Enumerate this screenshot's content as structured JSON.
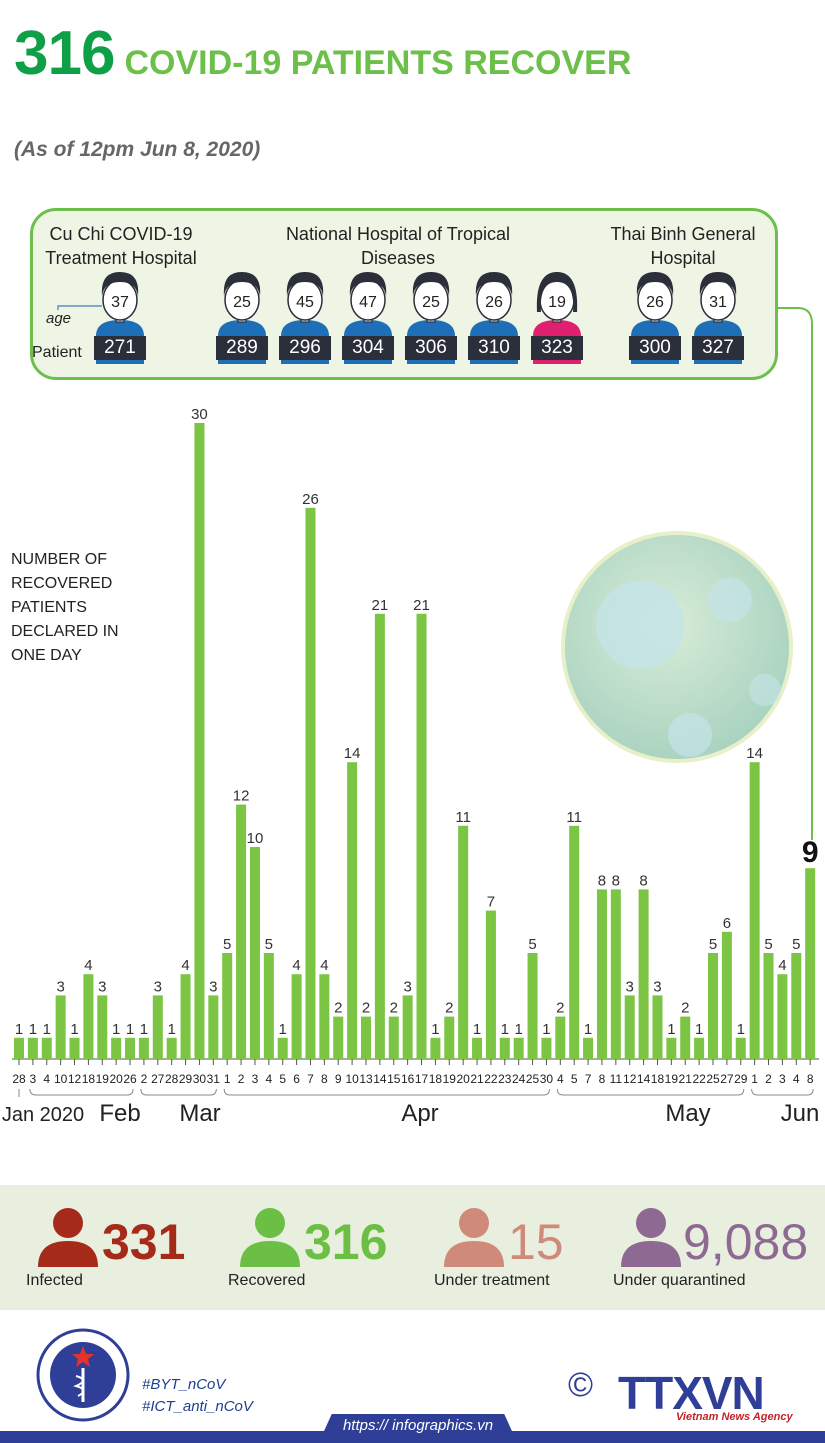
{
  "header": {
    "count": "316",
    "title": "COVID-19 PATIENTS RECOVER",
    "subtitle": "(As of 12pm Jun 8, 2020)"
  },
  "hospitals": [
    {
      "name_line1": "Cu Chi COVID-19",
      "name_line2": "Treatment Hospital"
    },
    {
      "name_line1": "National Hospital of Tropical",
      "name_line2": "Diseases"
    },
    {
      "name_line1": "Thai Binh General",
      "name_line2": "Hospital"
    }
  ],
  "patients": [
    {
      "age": "37",
      "id": "271",
      "gender": "male"
    },
    {
      "age": "25",
      "id": "289",
      "gender": "male"
    },
    {
      "age": "45",
      "id": "296",
      "gender": "male"
    },
    {
      "age": "47",
      "id": "304",
      "gender": "male"
    },
    {
      "age": "25",
      "id": "306",
      "gender": "male"
    },
    {
      "age": "26",
      "id": "310",
      "gender": "male"
    },
    {
      "age": "19",
      "id": "323",
      "gender": "female"
    },
    {
      "age": "26",
      "id": "300",
      "gender": "male"
    },
    {
      "age": "31",
      "id": "327",
      "gender": "male"
    }
  ],
  "notes": {
    "age": "age",
    "patient": "Patient"
  },
  "chart_desc": [
    "NUMBER OF",
    "RECOVERED",
    "PATIENTS",
    "DECLARED IN",
    "ONE DAY"
  ],
  "chart_data": {
    "type": "bar",
    "categories": [
      "28",
      "3",
      "4",
      "10",
      "12",
      "18",
      "19",
      "20",
      "26",
      "2",
      "27",
      "28",
      "29",
      "30",
      "31",
      "1",
      "2",
      "3",
      "4",
      "5",
      "6",
      "7",
      "8",
      "9",
      "10",
      "13",
      "14",
      "15",
      "16",
      "17",
      "18",
      "19",
      "20",
      "21",
      "22",
      "23",
      "24",
      "25",
      "30",
      "4",
      "5",
      "7",
      "8",
      "11",
      "12",
      "14",
      "18",
      "19",
      "21",
      "22",
      "25",
      "27",
      "29",
      "1",
      "2",
      "3",
      "4",
      "8"
    ],
    "values": [
      1,
      1,
      1,
      3,
      1,
      4,
      3,
      1,
      1,
      1,
      3,
      1,
      4,
      30,
      3,
      5,
      12,
      10,
      5,
      1,
      4,
      26,
      4,
      2,
      14,
      2,
      21,
      2,
      3,
      21,
      1,
      2,
      11,
      1,
      7,
      1,
      1,
      5,
      1,
      2,
      11,
      1,
      8,
      8,
      3,
      8,
      3,
      1,
      2,
      1,
      5,
      6,
      1,
      14,
      5,
      4,
      5,
      9
    ],
    "months": [
      "Jan 2020",
      "Feb",
      "Mar",
      "Apr",
      "May",
      "Jun"
    ],
    "highlight_index": 57
  },
  "stats": [
    {
      "value": "331",
      "label": "Infected",
      "color": "#a52a1a"
    },
    {
      "value": "316",
      "label": "Recovered",
      "color": "#6cbf45"
    },
    {
      "value": "15",
      "label": "Under treatment",
      "color": "#d08a7a"
    },
    {
      "value": "9,088",
      "label": "Under quarantined",
      "color": "#8e6a92"
    }
  ],
  "footer": {
    "tag1": "#BYT_nCoV",
    "tag2": "#ICT_anti_nCoV",
    "url": "https:// infographics.vn",
    "copyright": "©",
    "agency_logo": "TTXVN",
    "agency_name": "Vietnam News Agency"
  },
  "colors": {
    "bar": "#7cc443",
    "accent": "#0e9f47",
    "box_border": "#6cc04a",
    "navy": "#2f3f97"
  }
}
